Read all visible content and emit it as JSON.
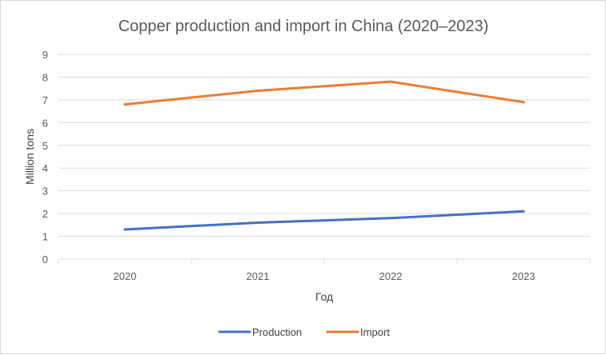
{
  "chart_data": {
    "type": "line",
    "title": "Copper production and import in China (2020–2023)",
    "xlabel": "Год",
    "ylabel": "Million tons",
    "categories": [
      "2020",
      "2021",
      "2022",
      "2023"
    ],
    "ylim": [
      0,
      9
    ],
    "yticks": [
      "0",
      "1",
      "2",
      "3",
      "4",
      "5",
      "6",
      "7",
      "8",
      "9"
    ],
    "grid": true,
    "legend_position": "bottom",
    "series": [
      {
        "name": "Production",
        "values": [
          1.3,
          1.6,
          1.8,
          2.1
        ],
        "color": "#4472c4"
      },
      {
        "name": "Import",
        "values": [
          6.8,
          7.4,
          7.8,
          6.9
        ],
        "color": "#ed7d31"
      }
    ]
  }
}
